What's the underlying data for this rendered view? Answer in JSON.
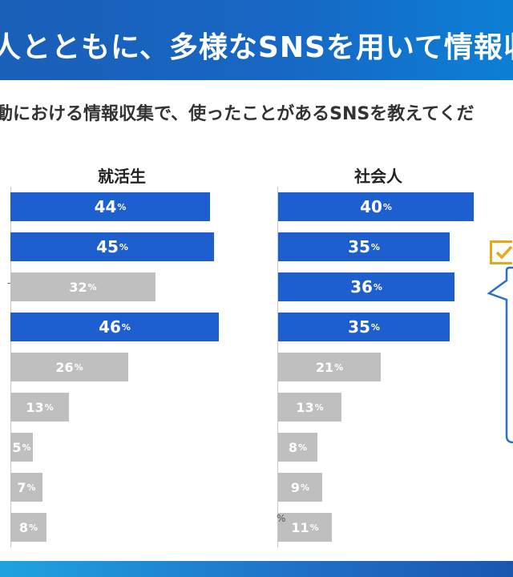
{
  "header": {
    "title": "人とともに、多様なSNSを用いて情報収集",
    "subtitle": "動における情報収集で、使ったことがあるSNSを教えてくだ"
  },
  "colors": {
    "highlight": "#1e5fcf",
    "normal": "#bfbfbf",
    "title_bar": "#1767c4",
    "check": "#e6a817"
  },
  "chart_data": [
    {
      "type": "bar",
      "orientation": "horizontal",
      "title": "就活生",
      "values": [
        44,
        45,
        32,
        46,
        26,
        13,
        5,
        7,
        8
      ],
      "highlighted": [
        true,
        true,
        false,
        true,
        false,
        false,
        false,
        false,
        false
      ],
      "value_suffix": "%",
      "xlim": [
        0,
        100
      ]
    },
    {
      "type": "bar",
      "orientation": "horizontal",
      "title": "社会人",
      "values": [
        40,
        35,
        36,
        35,
        21,
        13,
        8,
        9,
        11
      ],
      "highlighted": [
        true,
        true,
        true,
        true,
        false,
        false,
        false,
        false,
        false
      ],
      "value_suffix": "%",
      "xlim": [
        0,
        100
      ]
    }
  ]
}
